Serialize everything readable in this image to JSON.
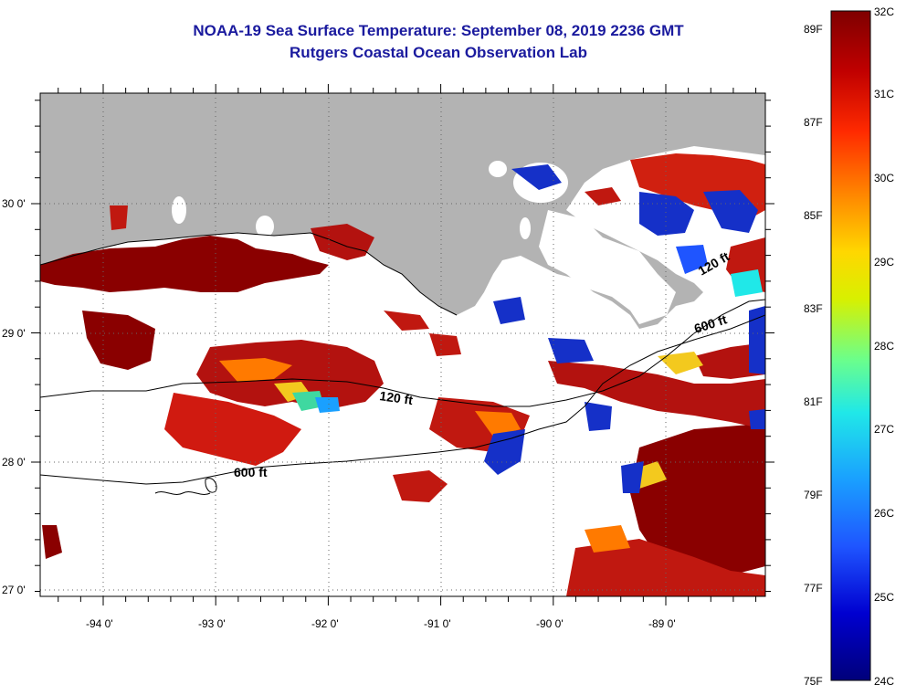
{
  "header": {
    "title": "NOAA-19 Sea Surface Temperature:  September 08, 2019 2236 GMT",
    "subtitle": "Rutgers Coastal Ocean Observation Lab"
  },
  "map": {
    "lon_ticks": [
      "-94 0'",
      "-93 0'",
      "-92 0'",
      "-91 0'",
      "-90 0'",
      "-89 0'"
    ],
    "lat_ticks": [
      "30 0'",
      "29 0'",
      "28 0'",
      "27 0'"
    ],
    "contour_labels": [
      "120 ft",
      "600 ft",
      "600 ft",
      "120 ft"
    ],
    "colors": {
      "land": "#b3b3b3",
      "no_data": "#ffffff",
      "warm": "#b3120f",
      "hot": "#8a0000",
      "cool": "#1530c8",
      "mid": "#f3c91e"
    }
  },
  "colorbar": {
    "fahrenheit_ticks": [
      "89F",
      "87F",
      "85F",
      "83F",
      "81F",
      "79F",
      "77F",
      "75F"
    ],
    "celsius_ticks": [
      "32C",
      "31C",
      "30C",
      "29C",
      "28C",
      "27C",
      "26C",
      "25C",
      "24C"
    ],
    "stops": [
      "#7f0000",
      "#d40000",
      "#ff3300",
      "#ff8c00",
      "#ffd700",
      "#d8f000",
      "#7cff7a",
      "#20e8e8",
      "#1aa0ff",
      "#1f55ff",
      "#0000c8",
      "#00007a"
    ]
  }
}
